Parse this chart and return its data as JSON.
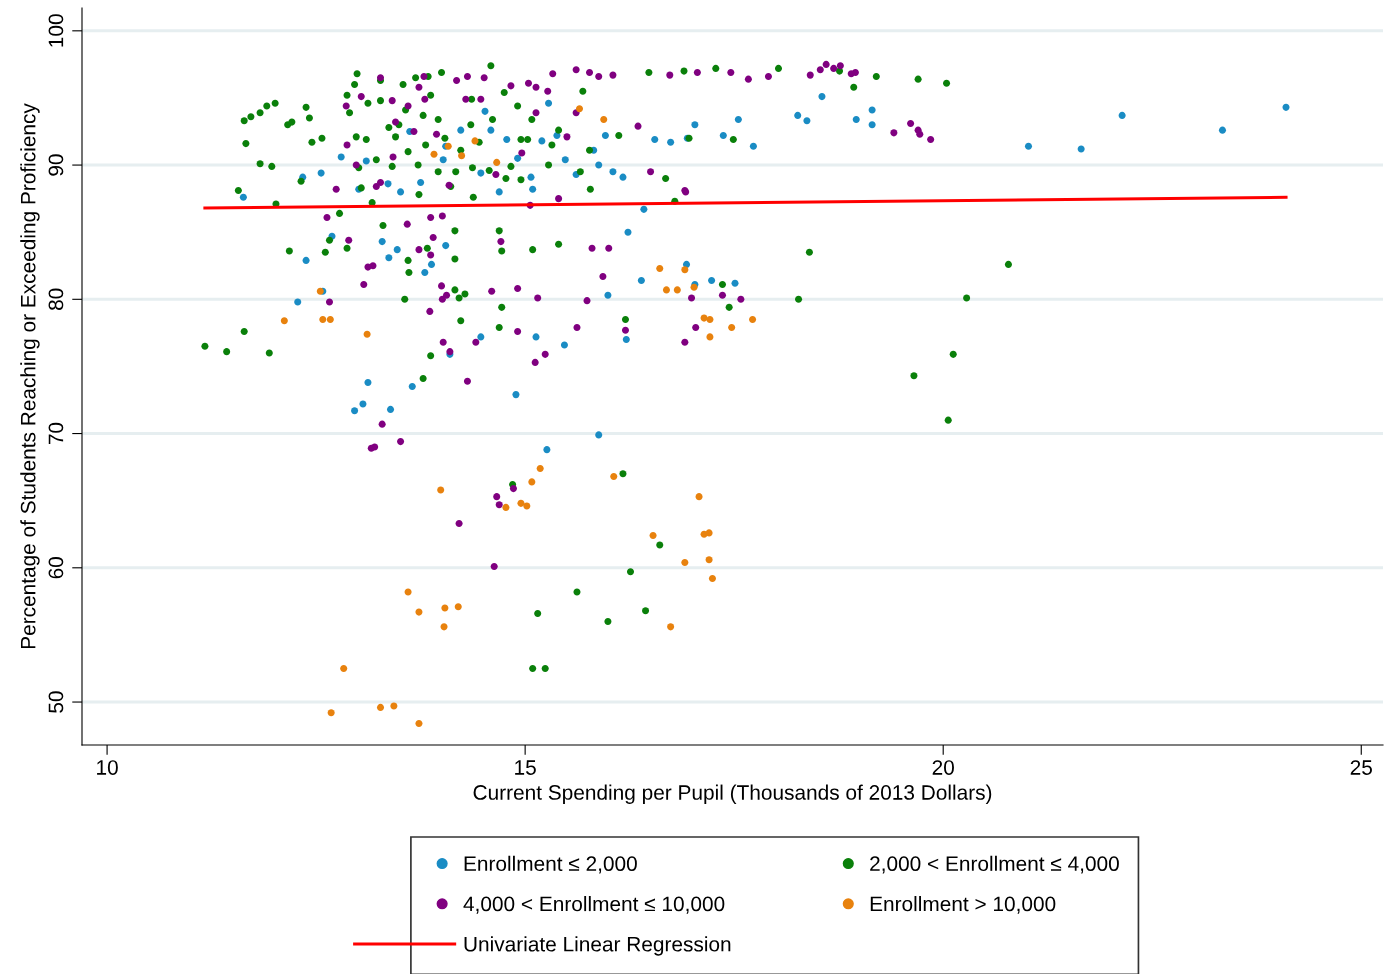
{
  "chart_data": {
    "type": "scatter",
    "xlabel": "Current Spending per Pupil (Thousands of 2013 Dollars)",
    "ylabel": "Percentage of Students Reaching or Exceeding Proficiency",
    "xlim": [
      9.7,
      25.26
    ],
    "ylim": [
      46.8,
      101.7
    ],
    "xticks": [
      10,
      15,
      20,
      25
    ],
    "yticks": [
      50,
      60,
      70,
      80,
      90,
      100
    ],
    "grid": "y",
    "legend": "bottom",
    "marker": "circle",
    "series": [
      {
        "name": "Enrollment ≤ 2,000",
        "color": "#1a8cc4",
        "x": [
          11.63,
          12.34,
          12.38,
          12.28,
          12.58,
          12.69,
          12.56,
          13.12,
          12.96,
          13.06,
          13.39,
          13.65,
          13.29,
          13.37,
          13.47,
          13.8,
          13.88,
          14.05,
          14.1,
          14.47,
          14.89,
          15.13,
          15.26,
          15.47,
          15.88,
          16.21,
          16.23,
          16.42,
          16.39,
          16.93,
          17.03,
          17.23,
          17.51,
          15.99,
          16.94,
          17.03,
          17.55,
          17.73,
          17.37,
          18.26,
          18.37,
          18.55,
          18.96,
          19.15,
          19.15,
          21.02,
          21.65,
          22.14,
          23.34,
          24.1,
          12.8,
          13.1,
          13.01,
          13.36,
          13.51,
          13.75,
          13.62,
          14.02,
          14.05,
          14.23,
          14.52,
          14.59,
          14.69,
          14.78,
          14.91,
          15.09,
          15.2,
          15.28,
          15.38,
          15.48,
          15.61,
          15.88,
          15.96,
          15.82,
          16.05,
          16.17,
          16.55,
          16.74,
          14.47,
          15.07
        ],
        "values": [
          87.6,
          89.1,
          82.9,
          79.8,
          80.6,
          84.7,
          89.4,
          73.8,
          71.7,
          72.2,
          71.8,
          73.5,
          84.3,
          83.1,
          83.7,
          82.0,
          82.6,
          84.0,
          75.9,
          77.2,
          72.9,
          77.2,
          68.8,
          76.6,
          69.9,
          77.0,
          85.0,
          86.7,
          81.4,
          82.6,
          81.1,
          81.4,
          81.2,
          80.3,
          92.0,
          93.0,
          93.4,
          91.4,
          92.2,
          93.7,
          93.3,
          95.1,
          93.4,
          94.1,
          93.0,
          91.4,
          91.2,
          93.7,
          92.6,
          94.3,
          90.6,
          90.3,
          88.2,
          88.6,
          88.0,
          88.7,
          92.5,
          90.4,
          91.4,
          92.6,
          94.0,
          92.6,
          88.0,
          91.9,
          90.5,
          88.2,
          91.8,
          94.6,
          92.2,
          90.4,
          89.3,
          90.0,
          92.2,
          91.1,
          89.5,
          89.1,
          91.9,
          91.7,
          89.4,
          89.1
        ]
      },
      {
        "name": "2,000 < Enrollment ≤ 4,000",
        "color": "#0a800a",
        "x": [
          11.17,
          11.43,
          11.64,
          11.94,
          11.57,
          11.66,
          11.64,
          11.72,
          11.83,
          11.91,
          12.01,
          11.83,
          11.97,
          12.02,
          12.16,
          12.21,
          12.18,
          12.38,
          12.42,
          12.45,
          12.32,
          12.57,
          12.66,
          12.61,
          12.78,
          12.87,
          12.9,
          12.96,
          12.99,
          12.87,
          12.98,
          13.12,
          13.01,
          13.04,
          13.17,
          13.27,
          13.37,
          13.41,
          13.3,
          13.56,
          13.6,
          13.61,
          13.73,
          13.78,
          13.87,
          13.83,
          14.0,
          14.04,
          14.11,
          14.16,
          14.16,
          14.16,
          14.21,
          14.23,
          14.28,
          14.36,
          14.37,
          14.38,
          14.61,
          14.59,
          14.69,
          14.72,
          14.72,
          14.69,
          14.85,
          14.83,
          14.95,
          15.08,
          15.09,
          15.24,
          15.15,
          15.09,
          15.4,
          15.32,
          15.62,
          15.69,
          15.77,
          15.99,
          16.17,
          16.2,
          16.12,
          16.26,
          16.44,
          16.48,
          16.61,
          16.68,
          16.79,
          16.9,
          16.96,
          17.28,
          17.36,
          17.44,
          17.49,
          18.03,
          18.27,
          18.4,
          18.76,
          18.93,
          19.2,
          19.7,
          20.04,
          19.65,
          20.06,
          20.12,
          20.28,
          20.78,
          13.27,
          13.54,
          13.69,
          13.84,
          13.87,
          13.57,
          13.78,
          13.96,
          13.45,
          13.6,
          13.81,
          13.72,
          13.96,
          14.17,
          14.23,
          14.35,
          14.45,
          14.57,
          14.77,
          14.91,
          14.75,
          15.03,
          14.95,
          15.28,
          15.4,
          15.66,
          15.78,
          13.49,
          13.1,
          13.22
        ],
        "values": [
          76.5,
          76.1,
          77.6,
          76.0,
          88.1,
          91.6,
          93.3,
          93.6,
          93.9,
          94.4,
          94.6,
          90.1,
          89.9,
          87.1,
          93.0,
          93.2,
          83.6,
          94.3,
          93.5,
          91.7,
          88.8,
          92.0,
          84.4,
          83.5,
          86.4,
          83.8,
          93.9,
          96.0,
          96.8,
          95.2,
          92.1,
          94.6,
          89.8,
          88.3,
          87.2,
          94.8,
          92.8,
          89.9,
          85.5,
          80.0,
          82.9,
          82.0,
          87.8,
          74.1,
          75.8,
          83.8,
          96.9,
          92.0,
          88.4,
          85.1,
          83.0,
          80.7,
          80.1,
          78.4,
          80.4,
          94.9,
          89.8,
          87.6,
          93.4,
          97.4,
          85.1,
          83.6,
          79.4,
          77.9,
          66.2,
          89.9,
          91.9,
          93.4,
          52.5,
          52.5,
          56.6,
          83.7,
          84.1,
          91.5,
          58.2,
          95.5,
          91.1,
          56.0,
          67.0,
          78.5,
          92.2,
          59.7,
          56.8,
          96.9,
          61.7,
          89.0,
          87.3,
          97.0,
          92.0,
          97.2,
          81.1,
          79.4,
          91.9,
          97.2,
          80.0,
          83.5,
          97.0,
          95.8,
          96.6,
          96.4,
          96.1,
          74.3,
          71.0,
          75.9,
          80.1,
          82.6,
          96.3,
          96.0,
          96.5,
          96.6,
          95.2,
          94.1,
          93.7,
          93.4,
          92.1,
          91.0,
          91.5,
          90.0,
          89.5,
          89.5,
          91.1,
          93.0,
          91.7,
          89.6,
          89.0,
          94.4,
          95.4,
          91.9,
          88.9,
          90.0,
          92.6,
          89.5,
          88.2,
          93.0,
          91.9,
          90.4
        ]
      },
      {
        "name": "4,000 < Enrollment ≤ 10,000",
        "color": "#800080",
        "x": [
          12.63,
          12.66,
          12.74,
          12.89,
          13.07,
          13.12,
          13.18,
          13.29,
          13.16,
          13.2,
          13.51,
          13.59,
          13.73,
          13.87,
          13.9,
          13.86,
          14.0,
          14.01,
          14.06,
          13.87,
          14.02,
          14.1,
          14.21,
          14.31,
          14.41,
          14.6,
          14.63,
          14.66,
          14.69,
          14.86,
          14.91,
          14.91,
          15.12,
          15.15,
          15.24,
          14.71,
          15.06,
          15.4,
          15.62,
          15.74,
          15.8,
          15.93,
          16.0,
          16.2,
          16.35,
          16.5,
          16.91,
          16.91,
          16.99,
          17.04,
          17.36,
          17.58,
          15.61,
          15.77,
          15.88,
          16.05,
          15.33,
          15.04,
          15.27,
          15.13,
          16.73,
          17.06,
          17.46,
          17.67,
          17.91,
          18.41,
          18.53,
          18.6,
          18.69,
          18.77,
          18.9,
          18.95,
          19.41,
          19.61,
          19.7,
          19.72,
          19.85,
          16.92,
          12.86,
          13.04,
          13.27,
          13.41,
          13.45,
          13.79,
          13.73,
          13.8,
          13.6,
          13.67,
          13.22,
          13.27,
          12.98,
          12.87,
          13.42,
          14.18,
          14.47,
          14.29,
          14.31,
          14.51,
          14.65,
          14.09,
          13.94,
          14.83,
          15.13,
          15.61,
          15.5,
          14.96,
          14.01
        ],
        "values": [
          86.1,
          79.8,
          88.2,
          84.4,
          81.1,
          82.4,
          82.5,
          70.7,
          68.9,
          69.0,
          69.4,
          85.6,
          83.7,
          83.3,
          84.6,
          79.1,
          81.0,
          80.0,
          80.3,
          86.1,
          76.8,
          76.1,
          63.3,
          73.9,
          76.8,
          80.6,
          60.1,
          65.3,
          64.7,
          65.9,
          80.8,
          77.6,
          75.3,
          80.1,
          75.9,
          84.3,
          87.0,
          87.5,
          77.9,
          79.9,
          83.8,
          81.7,
          83.8,
          77.7,
          92.9,
          89.5,
          88.1,
          76.8,
          80.1,
          77.9,
          80.3,
          80.0,
          97.1,
          96.9,
          96.6,
          96.7,
          96.8,
          96.1,
          95.5,
          95.8,
          96.7,
          96.9,
          96.9,
          96.4,
          96.6,
          96.7,
          97.1,
          97.5,
          97.2,
          97.4,
          96.8,
          96.9,
          92.4,
          93.1,
          92.6,
          92.3,
          91.9,
          88.0,
          94.4,
          95.1,
          96.5,
          94.8,
          93.2,
          96.6,
          95.8,
          94.9,
          94.4,
          92.5,
          88.4,
          88.7,
          90.0,
          91.5,
          90.6,
          96.3,
          94.9,
          94.9,
          96.6,
          96.5,
          89.3,
          88.5,
          92.3,
          95.9,
          93.9,
          93.9,
          92.1,
          90.9,
          86.2
        ]
      },
      {
        "name": "Enrollment > 10,000",
        "color": "#e8820e",
        "x": [
          12.55,
          12.12,
          12.58,
          12.67,
          13.11,
          12.83,
          12.68,
          13.27,
          13.43,
          13.73,
          13.6,
          13.73,
          14.04,
          14.2,
          14.03,
          13.99,
          14.77,
          14.95,
          15.02,
          15.08,
          15.18,
          14.08,
          14.24,
          13.91,
          14.66,
          14.4,
          15.65,
          15.94,
          16.06,
          16.53,
          16.61,
          16.69,
          16.74,
          16.82,
          16.91,
          16.91,
          17.02,
          17.08,
          17.14,
          17.2,
          17.2,
          17.24,
          17.14,
          17.21,
          17.21,
          17.47,
          17.72
        ],
        "values": [
          80.6,
          78.4,
          78.5,
          78.5,
          77.4,
          52.5,
          49.2,
          49.6,
          49.7,
          48.4,
          58.2,
          56.7,
          57.0,
          57.1,
          55.6,
          65.8,
          64.5,
          64.8,
          64.6,
          66.4,
          67.4,
          91.4,
          90.7,
          90.8,
          90.2,
          91.8,
          94.2,
          93.4,
          66.8,
          62.4,
          82.3,
          80.7,
          55.6,
          80.7,
          82.2,
          60.4,
          80.9,
          65.3,
          62.5,
          62.6,
          60.6,
          59.2,
          78.6,
          78.5,
          77.2,
          77.9,
          78.5
        ]
      },
      {
        "name": "Univariate Linear Regression",
        "type": "line",
        "color": "#ff0000",
        "marker": "none",
        "line_style": "solid",
        "x": [
          11.17,
          24.1
        ],
        "values": [
          86.8,
          87.6
        ]
      }
    ]
  }
}
